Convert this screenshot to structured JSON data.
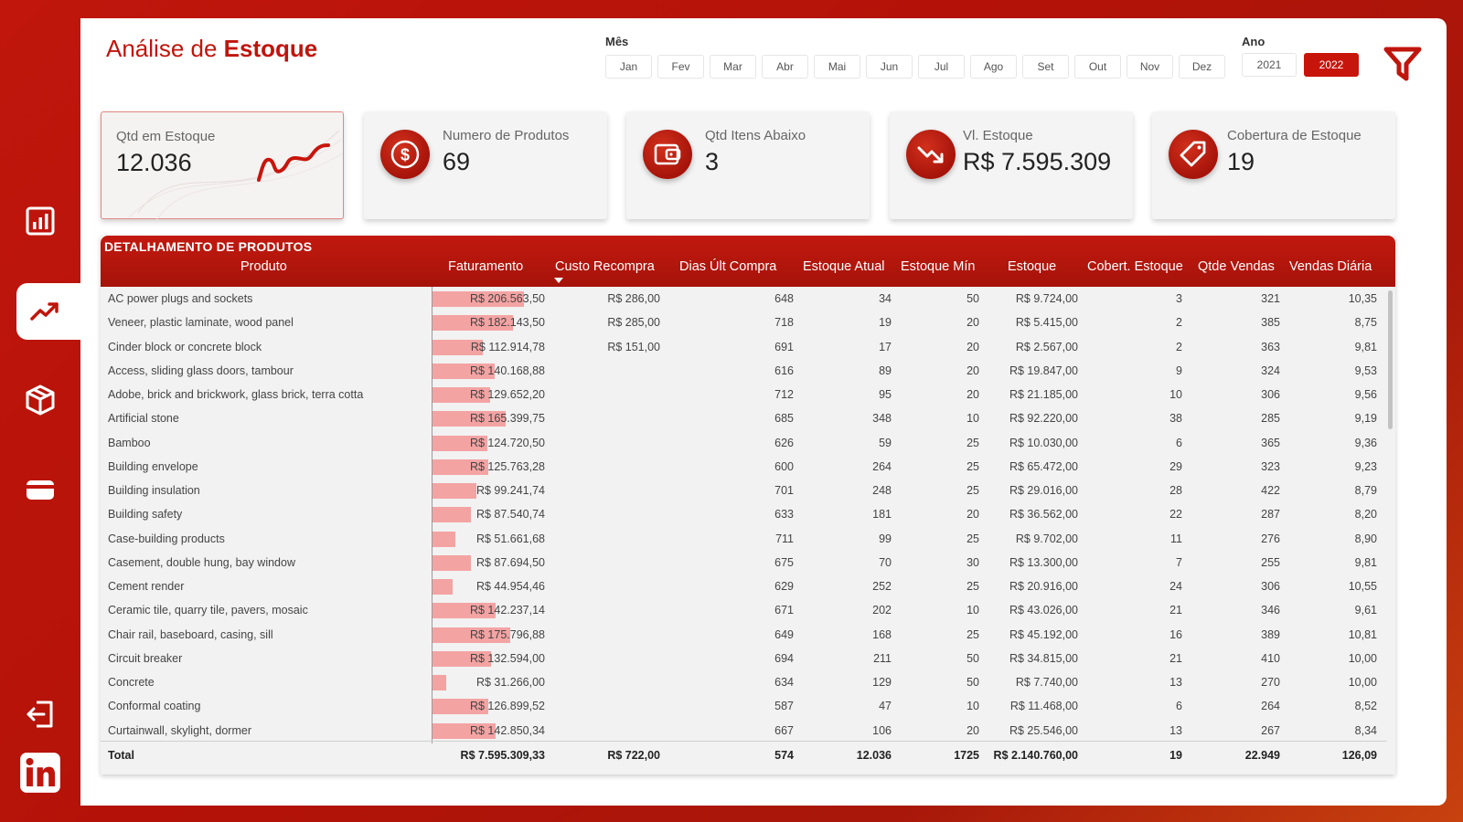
{
  "header": {
    "title_prefix": "Análise de ",
    "title_bold": "Estoque",
    "month_label": "Mês",
    "year_label": "Ano",
    "months": [
      "Jan",
      "Fev",
      "Mar",
      "Abr",
      "Mai",
      "Jun",
      "Jul",
      "Ago",
      "Set",
      "Out",
      "Nov",
      "Dez"
    ],
    "years": [
      "2021",
      "2022"
    ],
    "selected_year": "2022"
  },
  "sidebar": {
    "items": [
      {
        "icon": "bar-chart-icon"
      },
      {
        "icon": "trend-up-icon",
        "active": true
      },
      {
        "icon": "box-icon"
      },
      {
        "icon": "card-icon"
      },
      {
        "icon": "logout-icon"
      },
      {
        "icon": "linkedin-icon"
      }
    ]
  },
  "kpis": [
    {
      "label": "Qtd em Estoque",
      "value": "12.036",
      "icon": "sparkline-icon"
    },
    {
      "label": "Numero de Produtos",
      "value": "69",
      "icon": "dollar-icon"
    },
    {
      "label": "Qtd Itens Abaixo",
      "value": "3",
      "icon": "wallet-icon"
    },
    {
      "label": "Vl. Estoque",
      "value": "R$ 7.595.309",
      "icon": "trend-down-icon"
    },
    {
      "label": "Cobertura de Estoque",
      "value": "19",
      "icon": "tag-icon"
    }
  ],
  "table": {
    "title": "DETALHAMENTO DE PRODUTOS",
    "columns": [
      "Produto",
      "Faturamento",
      "Custo Recompra",
      "Dias Últ Compra",
      "Estoque Atual",
      "Estoque Mín",
      "Estoque",
      "Cobert. Estoque",
      "Qtde Vendas",
      "Vendas Diária"
    ],
    "bar_max": 206563.5,
    "rows": [
      {
        "produto": "AC power plugs and sockets",
        "faturamento": "R$ 206.563,50",
        "fat_value": 206563.5,
        "custo": "R$ 286,00",
        "dias": "648",
        "atual": "34",
        "min": "50",
        "estoque": "R$ 9.724,00",
        "cobert": "3",
        "vendas": "321",
        "diaria": "10,35"
      },
      {
        "produto": "Veneer, plastic laminate, wood panel",
        "faturamento": "R$ 182.143,50",
        "fat_value": 182143.5,
        "custo": "R$ 285,00",
        "dias": "718",
        "atual": "19",
        "min": "20",
        "estoque": "R$ 5.415,00",
        "cobert": "2",
        "vendas": "385",
        "diaria": "8,75"
      },
      {
        "produto": "Cinder block or concrete block",
        "faturamento": "R$ 112.914,78",
        "fat_value": 112914.78,
        "custo": "R$ 151,00",
        "dias": "691",
        "atual": "17",
        "min": "20",
        "estoque": "R$ 2.567,00",
        "cobert": "2",
        "vendas": "363",
        "diaria": "9,81"
      },
      {
        "produto": "Access, sliding glass doors, tambour",
        "faturamento": "R$ 140.168,88",
        "fat_value": 140168.88,
        "custo": "",
        "dias": "616",
        "atual": "89",
        "min": "20",
        "estoque": "R$ 19.847,00",
        "cobert": "9",
        "vendas": "324",
        "diaria": "9,53"
      },
      {
        "produto": "Adobe, brick and brickwork, glass brick, terra cotta",
        "faturamento": "R$ 129.652,20",
        "fat_value": 129652.2,
        "custo": "",
        "dias": "712",
        "atual": "95",
        "min": "20",
        "estoque": "R$ 21.185,00",
        "cobert": "10",
        "vendas": "306",
        "diaria": "9,56"
      },
      {
        "produto": "Artificial stone",
        "faturamento": "R$ 165.399,75",
        "fat_value": 165399.75,
        "custo": "",
        "dias": "685",
        "atual": "348",
        "min": "10",
        "estoque": "R$ 92.220,00",
        "cobert": "38",
        "vendas": "285",
        "diaria": "9,19"
      },
      {
        "produto": "Bamboo",
        "faturamento": "R$ 124.720,50",
        "fat_value": 124720.5,
        "custo": "",
        "dias": "626",
        "atual": "59",
        "min": "25",
        "estoque": "R$ 10.030,00",
        "cobert": "6",
        "vendas": "365",
        "diaria": "9,36"
      },
      {
        "produto": "Building envelope",
        "faturamento": "R$ 125.763,28",
        "fat_value": 125763.28,
        "custo": "",
        "dias": "600",
        "atual": "264",
        "min": "25",
        "estoque": "R$ 65.472,00",
        "cobert": "29",
        "vendas": "323",
        "diaria": "9,23"
      },
      {
        "produto": "Building insulation",
        "faturamento": "R$ 99.241,74",
        "fat_value": 99241.74,
        "custo": "",
        "dias": "701",
        "atual": "248",
        "min": "25",
        "estoque": "R$ 29.016,00",
        "cobert": "28",
        "vendas": "422",
        "diaria": "8,79"
      },
      {
        "produto": "Building safety",
        "faturamento": "R$ 87.540,74",
        "fat_value": 87540.74,
        "custo": "",
        "dias": "633",
        "atual": "181",
        "min": "20",
        "estoque": "R$ 36.562,00",
        "cobert": "22",
        "vendas": "287",
        "diaria": "8,20"
      },
      {
        "produto": "Case-building products",
        "faturamento": "R$ 51.661,68",
        "fat_value": 51661.68,
        "custo": "",
        "dias": "711",
        "atual": "99",
        "min": "25",
        "estoque": "R$ 9.702,00",
        "cobert": "11",
        "vendas": "276",
        "diaria": "8,90"
      },
      {
        "produto": "Casement, double hung, bay window",
        "faturamento": "R$ 87.694,50",
        "fat_value": 87694.5,
        "custo": "",
        "dias": "675",
        "atual": "70",
        "min": "30",
        "estoque": "R$ 13.300,00",
        "cobert": "7",
        "vendas": "255",
        "diaria": "9,81"
      },
      {
        "produto": "Cement render",
        "faturamento": "R$ 44.954,46",
        "fat_value": 44954.46,
        "custo": "",
        "dias": "629",
        "atual": "252",
        "min": "25",
        "estoque": "R$ 20.916,00",
        "cobert": "24",
        "vendas": "306",
        "diaria": "10,55"
      },
      {
        "produto": "Ceramic tile, quarry tile, pavers, mosaic",
        "faturamento": "R$ 142.237,14",
        "fat_value": 142237.14,
        "custo": "",
        "dias": "671",
        "atual": "202",
        "min": "10",
        "estoque": "R$ 43.026,00",
        "cobert": "21",
        "vendas": "346",
        "diaria": "9,61"
      },
      {
        "produto": "Chair rail, baseboard, casing, sill",
        "faturamento": "R$ 175.796,88",
        "fat_value": 175796.88,
        "custo": "",
        "dias": "649",
        "atual": "168",
        "min": "25",
        "estoque": "R$ 45.192,00",
        "cobert": "16",
        "vendas": "389",
        "diaria": "10,81"
      },
      {
        "produto": "Circuit breaker",
        "faturamento": "R$ 132.594,00",
        "fat_value": 132594.0,
        "custo": "",
        "dias": "694",
        "atual": "211",
        "min": "50",
        "estoque": "R$ 34.815,00",
        "cobert": "21",
        "vendas": "410",
        "diaria": "10,00"
      },
      {
        "produto": "Concrete",
        "faturamento": "R$ 31.266,00",
        "fat_value": 31266.0,
        "custo": "",
        "dias": "634",
        "atual": "129",
        "min": "50",
        "estoque": "R$ 7.740,00",
        "cobert": "13",
        "vendas": "270",
        "diaria": "10,00"
      },
      {
        "produto": "Conformal coating",
        "faturamento": "R$ 126.899,52",
        "fat_value": 126899.52,
        "custo": "",
        "dias": "587",
        "atual": "47",
        "min": "10",
        "estoque": "R$ 11.468,00",
        "cobert": "6",
        "vendas": "264",
        "diaria": "8,52"
      },
      {
        "produto": "Curtainwall, skylight, dormer",
        "faturamento": "R$ 142.850,34",
        "fat_value": 142850.34,
        "custo": "",
        "dias": "667",
        "atual": "106",
        "min": "20",
        "estoque": "R$ 25.546,00",
        "cobert": "13",
        "vendas": "267",
        "diaria": "8,34"
      }
    ],
    "total": {
      "produto": "Total",
      "faturamento": "R$ 7.595.309,33",
      "custo": "R$ 722,00",
      "dias": "574",
      "atual": "12.036",
      "min": "1725",
      "estoque": "R$ 2.140.760,00",
      "cobert": "19",
      "vendas": "22.949",
      "diaria": "126,09"
    }
  }
}
